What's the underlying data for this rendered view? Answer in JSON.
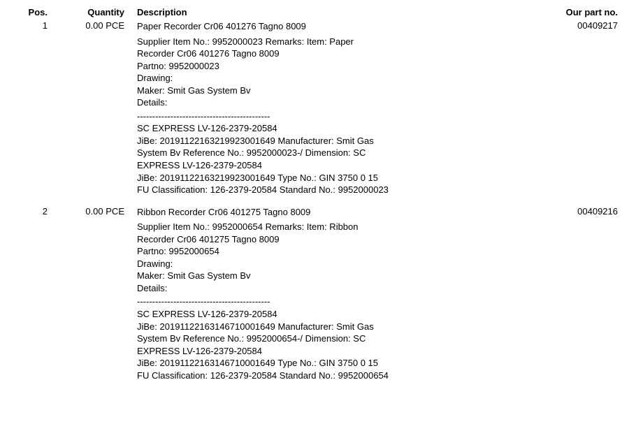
{
  "headers": {
    "pos": "Pos.",
    "qty": "Quantity",
    "desc": "Description",
    "partno": "Our part no."
  },
  "separator": "--------------------------------------------",
  "rows": [
    {
      "pos": "1",
      "qty": "0.00 PCE",
      "partno": "00409217",
      "title": "Paper Recorder Cr06 401276 Tagno 8009",
      "sub": [
        "Supplier Item No.: 9952000023 Remarks: Item: Paper",
        "Recorder Cr06 401276 Tagno 8009",
        "Partno: 9952000023",
        "Drawing:",
        "Maker: Smit Gas System Bv",
        "Details:"
      ],
      "extra": [
        "SC EXPRESS LV-126-2379-20584",
        "JiBe: 20191122163219923001649 Manufacturer: Smit Gas",
        "System Bv Reference No.: 9952000023-/ Dimension: SC",
        "EXPRESS LV-126-2379-20584",
        "JiBe: 20191122163219923001649 Type No.: GIN 3750 0 15",
        "FU Classification: 126-2379-20584 Standard No.: 9952000023"
      ]
    },
    {
      "pos": "2",
      "qty": "0.00 PCE",
      "partno": "00409216",
      "title": "Ribbon Recorder Cr06 401275 Tagno 8009",
      "sub": [
        "Supplier Item No.: 9952000654 Remarks: Item: Ribbon",
        "Recorder Cr06 401275 Tagno 8009",
        "Partno: 9952000654",
        "Drawing:",
        "Maker: Smit Gas System Bv",
        "Details:"
      ],
      "extra": [
        "SC EXPRESS LV-126-2379-20584",
        "JiBe: 20191122163146710001649 Manufacturer: Smit Gas",
        "System Bv Reference No.: 9952000654-/ Dimension: SC",
        "EXPRESS LV-126-2379-20584",
        "JiBe: 20191122163146710001649 Type No.: GIN 3750 0 15",
        "FU Classification: 126-2379-20584 Standard No.: 9952000654"
      ]
    }
  ]
}
